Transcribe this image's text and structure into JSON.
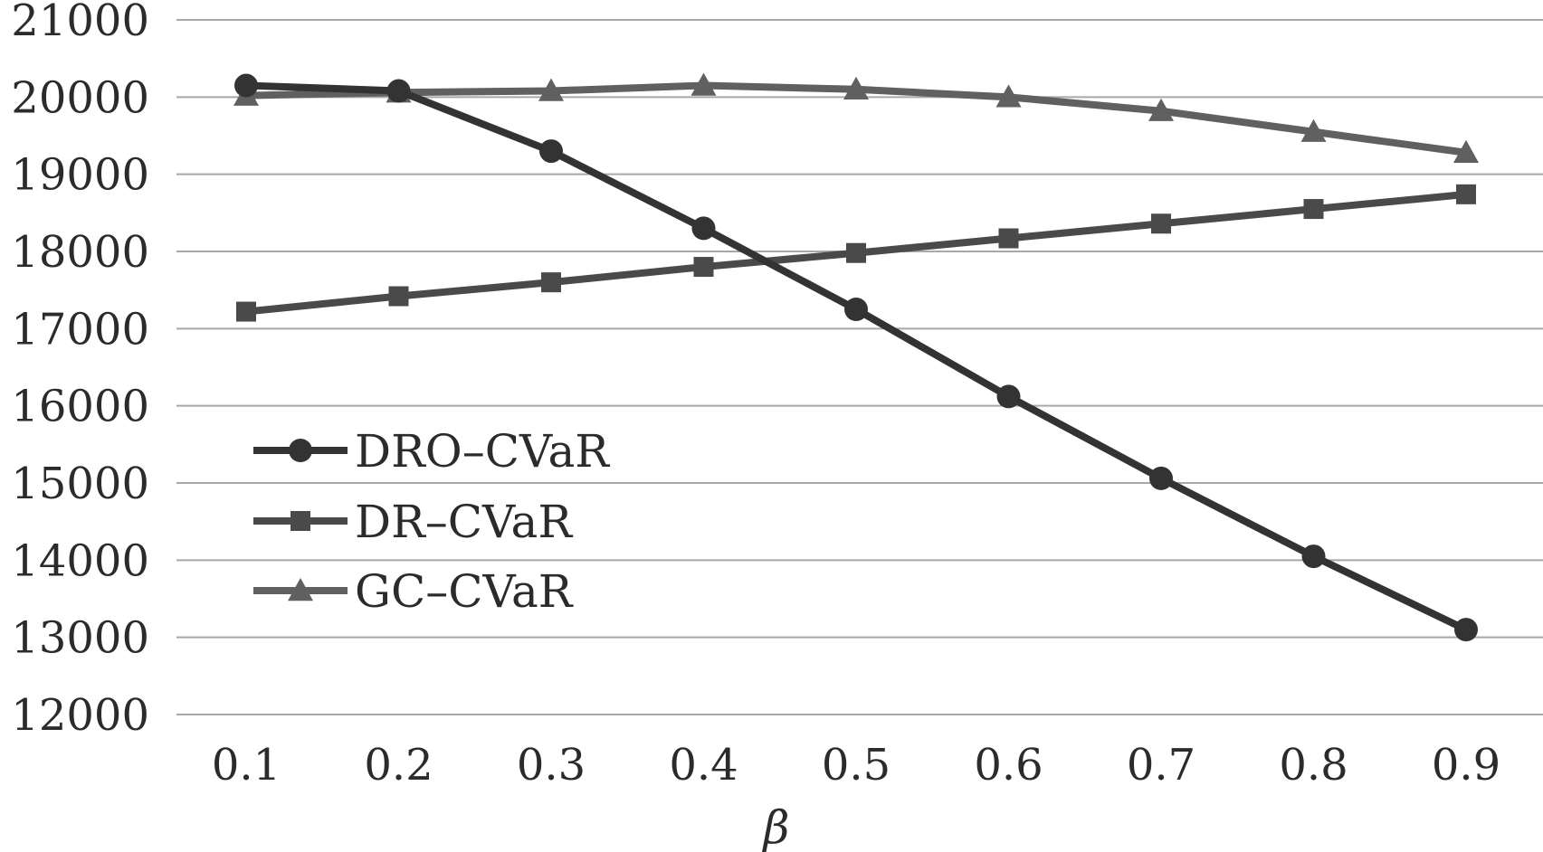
{
  "chart_data": {
    "type": "line",
    "title": "",
    "xlabel": "β",
    "ylabel": "",
    "x": [
      0.1,
      0.2,
      0.3,
      0.4,
      0.5,
      0.6,
      0.7,
      0.8,
      0.9
    ],
    "x_tick_labels": [
      "0.1",
      "0.2",
      "0.3",
      "0.4",
      "0.5",
      "0.6",
      "0.7",
      "0.8",
      "0.9"
    ],
    "ylim": [
      12000,
      21000
    ],
    "y_ticks": [
      12000,
      13000,
      14000,
      15000,
      16000,
      17000,
      18000,
      19000,
      20000,
      21000
    ],
    "y_tick_labels": [
      "12000",
      "13000",
      "14000",
      "15000",
      "16000",
      "17000",
      "18000",
      "19000",
      "20000",
      "21000"
    ],
    "grid": "horizontal",
    "legend_position": "left-lower",
    "series": [
      {
        "name": "DRO–CVaR",
        "marker": "circle",
        "color": "#333333",
        "values": [
          20150,
          20080,
          19300,
          18300,
          17250,
          16120,
          15060,
          14050,
          13100
        ]
      },
      {
        "name": "DR–CVaR",
        "marker": "square",
        "color": "#4a4a4a",
        "values": [
          17220,
          17420,
          17600,
          17800,
          17980,
          18170,
          18360,
          18550,
          18740
        ]
      },
      {
        "name": "GC–CVaR",
        "marker": "triangle",
        "color": "#606060",
        "values": [
          20020,
          20060,
          20080,
          20150,
          20100,
          20000,
          19820,
          19550,
          19280
        ]
      }
    ]
  }
}
